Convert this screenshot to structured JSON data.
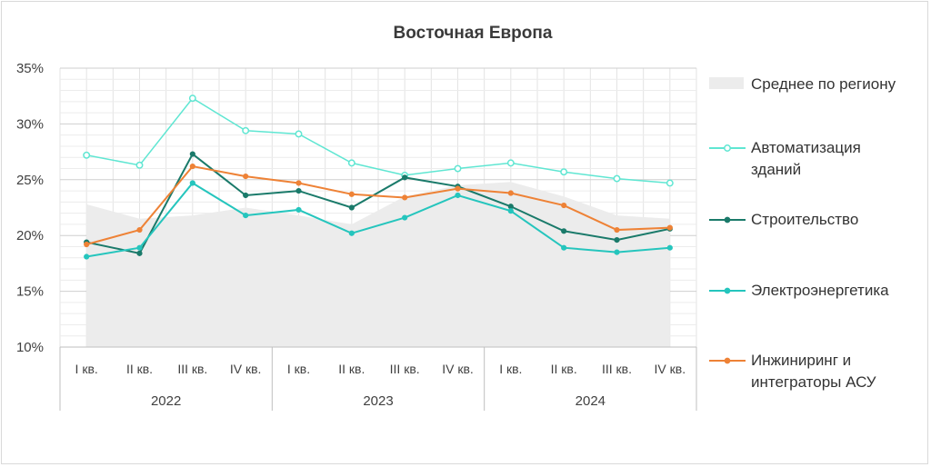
{
  "chart_data": {
    "type": "line",
    "title": "Восточная Европа",
    "ylim": [
      10,
      35
    ],
    "yticks": [
      "10%",
      "15%",
      "20%",
      "25%",
      "30%",
      "35%"
    ],
    "ytick_values": [
      10,
      15,
      20,
      25,
      30,
      35
    ],
    "categories": [
      "I кв.",
      "II кв.",
      "III кв.",
      "IV кв.",
      "I кв.",
      "II кв.",
      "III кв.",
      "IV кв.",
      "I кв.",
      "II кв.",
      "III кв.",
      "IV кв."
    ],
    "years": [
      "2022",
      "2023",
      "2024"
    ],
    "area": {
      "name": "Среднее по региону",
      "color": "#ececec",
      "values": [
        22.8,
        21.5,
        21.8,
        22.5,
        21.8,
        21.0,
        23.5,
        24.5,
        24.8,
        23.5,
        21.8,
        21.5
      ]
    },
    "series": [
      {
        "name": "Автоматизация зданий",
        "legend_lines": [
          "Автоматизация",
          "зданий"
        ],
        "color": "#5fe6d2",
        "hollow": true,
        "values": [
          27.2,
          26.3,
          32.3,
          29.4,
          29.1,
          26.5,
          25.4,
          26.0,
          26.5,
          25.7,
          25.1,
          24.7
        ]
      },
      {
        "name": "Строительство",
        "legend_lines": [
          "Строительство"
        ],
        "color": "#1a7a6a",
        "hollow": false,
        "values": [
          19.4,
          18.4,
          27.3,
          23.6,
          24.0,
          22.5,
          25.2,
          24.4,
          22.6,
          20.4,
          19.6,
          20.6
        ]
      },
      {
        "name": "Электроэнергетика",
        "legend_lines": [
          "Электроэнергетика"
        ],
        "color": "#25c5bd",
        "hollow": false,
        "values": [
          18.1,
          18.9,
          24.7,
          21.8,
          22.3,
          20.2,
          21.6,
          23.6,
          22.2,
          18.9,
          18.5,
          18.9
        ]
      },
      {
        "name": "Инжиниринг и интеграторы АСУ",
        "legend_lines": [
          "Инжиниринг и",
          "интеграторы АСУ"
        ],
        "color": "#ee8236",
        "hollow": false,
        "values": [
          19.2,
          20.5,
          26.2,
          25.3,
          24.7,
          23.7,
          23.4,
          24.2,
          23.8,
          22.7,
          20.5,
          20.7
        ]
      }
    ]
  }
}
